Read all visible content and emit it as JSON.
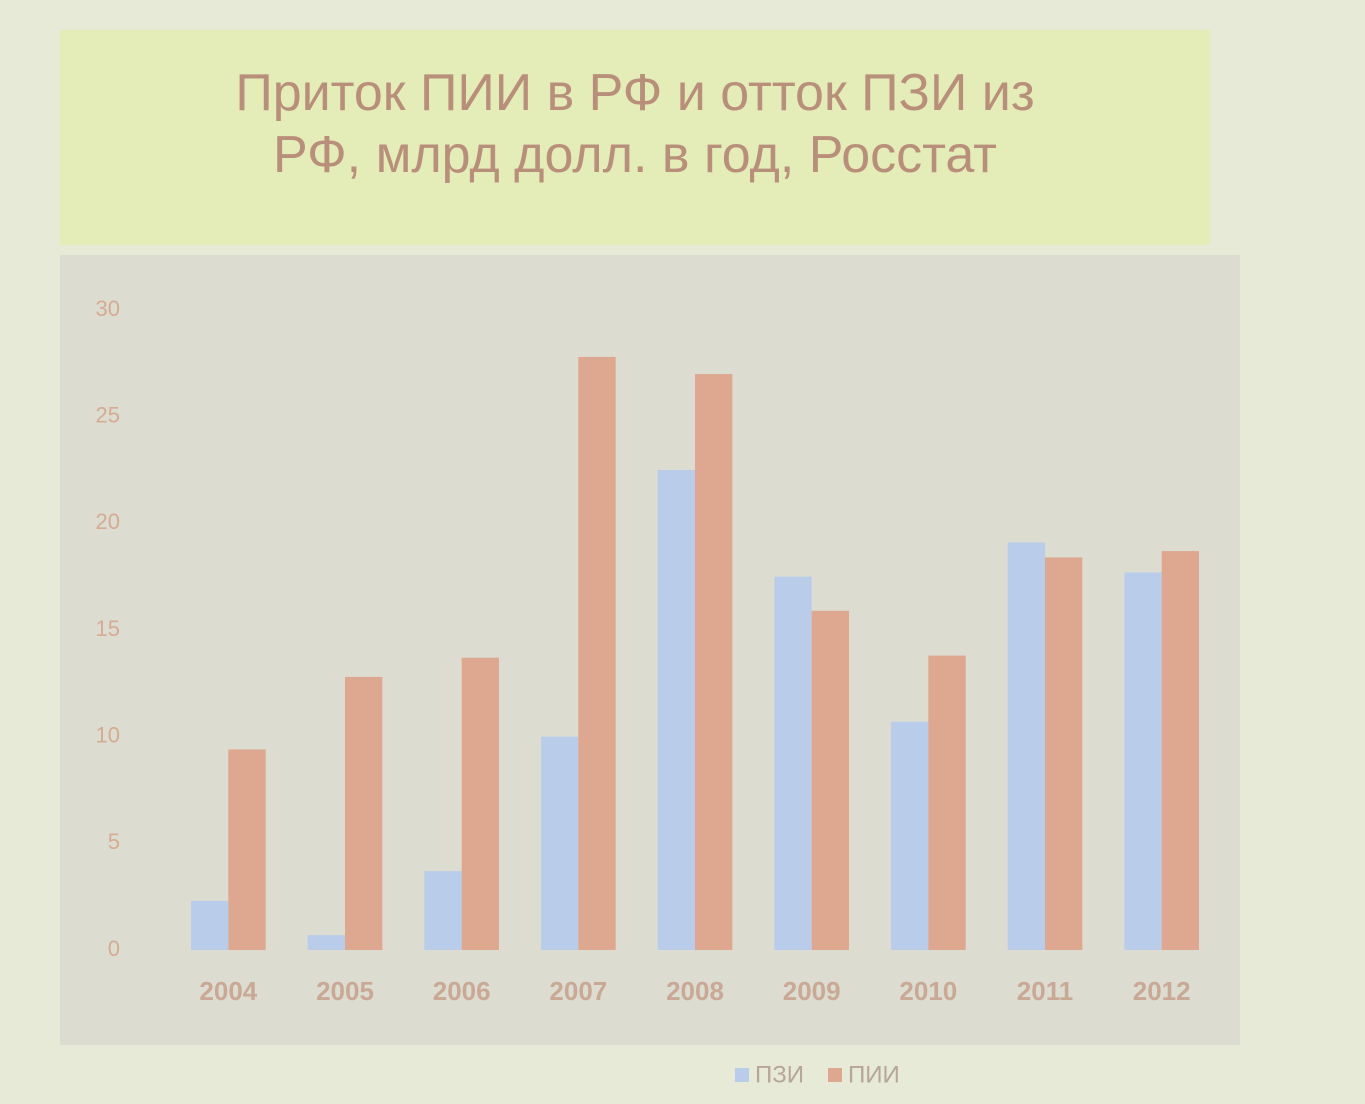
{
  "chart_data": {
    "type": "bar",
    "title": "Приток ПИИ в РФ и отток ПЗИ из РФ, млрд долл. в год, Росстат",
    "categories": [
      "2004",
      "2005",
      "2006",
      "2007",
      "2008",
      "2009",
      "2010",
      "2011",
      "2012"
    ],
    "series": [
      {
        "name": "ПЗИ",
        "color": "#b9cdea",
        "values": [
          2.3,
          0.7,
          3.7,
          10,
          22.5,
          17.5,
          10.7,
          19.1,
          17.7
        ]
      },
      {
        "name": "ПИИ",
        "color": "#dda88f",
        "values": [
          9.4,
          12.8,
          13.7,
          27.8,
          27.0,
          15.9,
          13.8,
          18.4,
          18.7
        ]
      }
    ],
    "ylim": [
      0,
      30
    ],
    "yticks": [
      0,
      5,
      10,
      15,
      20,
      25,
      30
    ],
    "grid": false,
    "legend": "bottom"
  }
}
